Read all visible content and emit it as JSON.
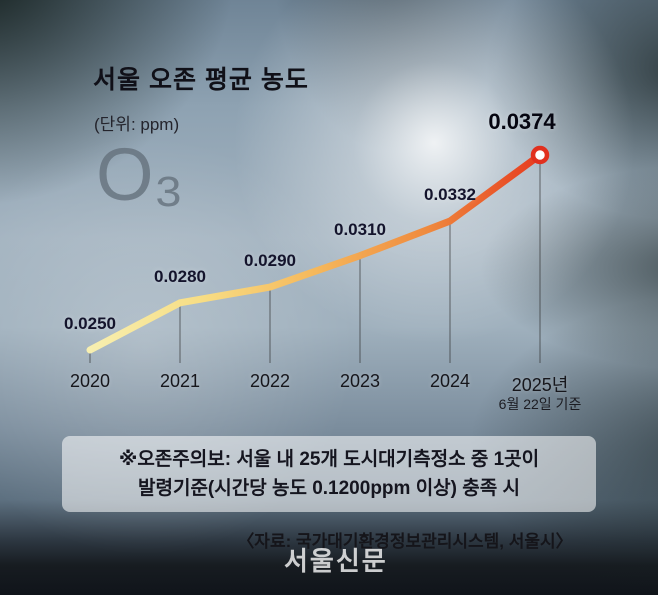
{
  "header": {
    "title": "서울 오존 평균 농도",
    "unit": "(단위: ppm)",
    "molecule": "O₃"
  },
  "chart_data": {
    "type": "line",
    "categories": [
      "2020",
      "2021",
      "2022",
      "2023",
      "2024",
      "2025년"
    ],
    "category_sublabels": [
      "",
      "",
      "",
      "",
      "",
      "6월 22일 기준"
    ],
    "values": [
      0.025,
      0.028,
      0.029,
      0.031,
      0.0332,
      0.0374
    ],
    "value_labels": [
      "0.0250",
      "0.0280",
      "0.0290",
      "0.0310",
      "0.0332",
      "0.0374"
    ],
    "title": "서울 오존 평균 농도",
    "xlabel": "",
    "ylabel": "ppm",
    "ylim": [
      0.024,
      0.039
    ],
    "grid": false,
    "legend": false,
    "line_gradient": [
      "#f7efb0",
      "#f7dd84",
      "#f5b85c",
      "#ef8a3e",
      "#e63b1f"
    ],
    "marker_fill": "#ffffff",
    "marker_stroke": "#e1301e",
    "guide_color": "rgba(45,45,45,0.55)"
  },
  "note": {
    "line1": "※오존주의보: 서울 내 25개 도시대기측정소 중 1곳이",
    "line2": "발령기준(시간당 농도 0.1200ppm 이상) 충족 시"
  },
  "source": "〈자료: 국가대기환경정보관리시스템, 서울시〉",
  "watermark": "서울신문"
}
